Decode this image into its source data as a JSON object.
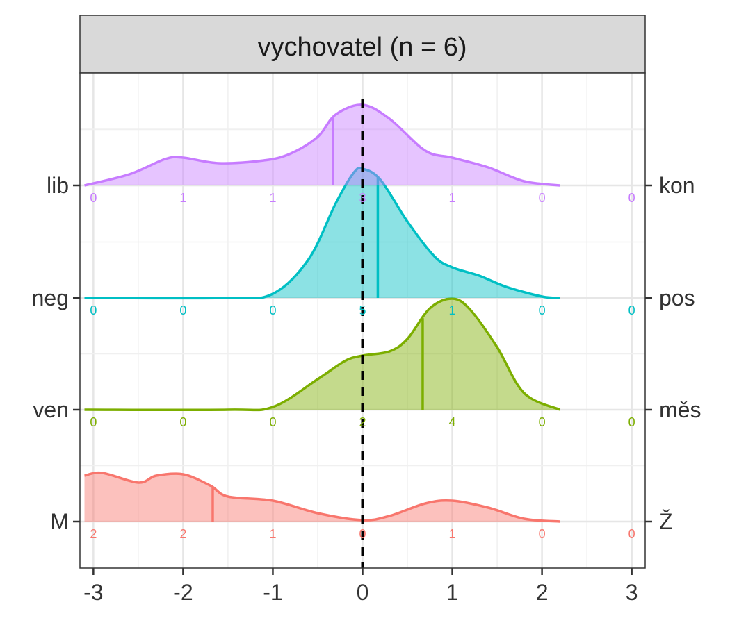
{
  "chart_data": {
    "type": "ridgeline",
    "title": "vychovatel (n = 6)",
    "xlim": [
      -3.15,
      3.15
    ],
    "x_ticks": [
      -3,
      -2,
      -1,
      0,
      1,
      2,
      3
    ],
    "x_tick_labels": [
      "-3",
      "-2",
      "-1",
      "0",
      "1",
      "2",
      "3"
    ],
    "reference_line_x": 0,
    "grid": true,
    "count_positions": [
      -3,
      -2,
      -1,
      0,
      1,
      2,
      3
    ],
    "series": [
      {
        "left_label": "M",
        "right_label": "Ž",
        "color": "#F8766D",
        "median": -1.67,
        "counts": [
          "2",
          "2",
          "1",
          "0",
          "1",
          "0",
          "0"
        ],
        "density": [
          [
            -3.1,
            0.33
          ],
          [
            -2.9,
            0.35
          ],
          [
            -2.5,
            0.28
          ],
          [
            -2.3,
            0.33
          ],
          [
            -2.0,
            0.34
          ],
          [
            -1.7,
            0.26
          ],
          [
            -1.5,
            0.18
          ],
          [
            -1.0,
            0.15
          ],
          [
            -0.5,
            0.06
          ],
          [
            0.0,
            0.01
          ],
          [
            0.3,
            0.04
          ],
          [
            0.7,
            0.13
          ],
          [
            1.0,
            0.15
          ],
          [
            1.4,
            0.1
          ],
          [
            1.8,
            0.02
          ],
          [
            2.2,
            0.0
          ]
        ]
      },
      {
        "left_label": "ven",
        "right_label": "měs",
        "color": "#7CAE00",
        "median": 0.67,
        "counts": [
          "0",
          "0",
          "0",
          "2",
          "4",
          "0",
          "0"
        ],
        "density": [
          [
            -3.1,
            0.0
          ],
          [
            -1.5,
            0.0
          ],
          [
            -1.0,
            0.02
          ],
          [
            -0.5,
            0.22
          ],
          [
            -0.2,
            0.35
          ],
          [
            0.0,
            0.39
          ],
          [
            0.3,
            0.42
          ],
          [
            0.5,
            0.51
          ],
          [
            0.75,
            0.73
          ],
          [
            1.0,
            0.8
          ],
          [
            1.2,
            0.72
          ],
          [
            1.5,
            0.45
          ],
          [
            1.8,
            0.12
          ],
          [
            2.2,
            0.0
          ]
        ]
      },
      {
        "left_label": "neg",
        "right_label": "pos",
        "color": "#00BFC4",
        "median": 0.17,
        "counts": [
          "0",
          "0",
          "0",
          "5",
          "1",
          "0",
          "0"
        ],
        "density": [
          [
            -3.1,
            0.0
          ],
          [
            -1.5,
            0.0
          ],
          [
            -1.0,
            0.03
          ],
          [
            -0.6,
            0.28
          ],
          [
            -0.3,
            0.68
          ],
          [
            -0.1,
            0.9
          ],
          [
            0.0,
            0.93
          ],
          [
            0.2,
            0.85
          ],
          [
            0.5,
            0.55
          ],
          [
            0.8,
            0.3
          ],
          [
            1.0,
            0.22
          ],
          [
            1.3,
            0.16
          ],
          [
            1.6,
            0.08
          ],
          [
            2.0,
            0.01
          ],
          [
            2.2,
            0.0
          ]
        ]
      },
      {
        "left_label": "lib",
        "right_label": "kon",
        "color": "#C77CFF",
        "median": -0.33,
        "counts": [
          "0",
          "1",
          "1",
          "3",
          "1",
          "0",
          "0"
        ],
        "density": [
          [
            -3.1,
            0.0
          ],
          [
            -2.6,
            0.08
          ],
          [
            -2.2,
            0.19
          ],
          [
            -2.0,
            0.2
          ],
          [
            -1.6,
            0.16
          ],
          [
            -1.1,
            0.18
          ],
          [
            -0.8,
            0.23
          ],
          [
            -0.5,
            0.35
          ],
          [
            -0.3,
            0.51
          ],
          [
            0.0,
            0.58
          ],
          [
            0.3,
            0.48
          ],
          [
            0.7,
            0.25
          ],
          [
            1.0,
            0.2
          ],
          [
            1.4,
            0.13
          ],
          [
            1.8,
            0.03
          ],
          [
            2.2,
            0.0
          ]
        ]
      }
    ]
  }
}
